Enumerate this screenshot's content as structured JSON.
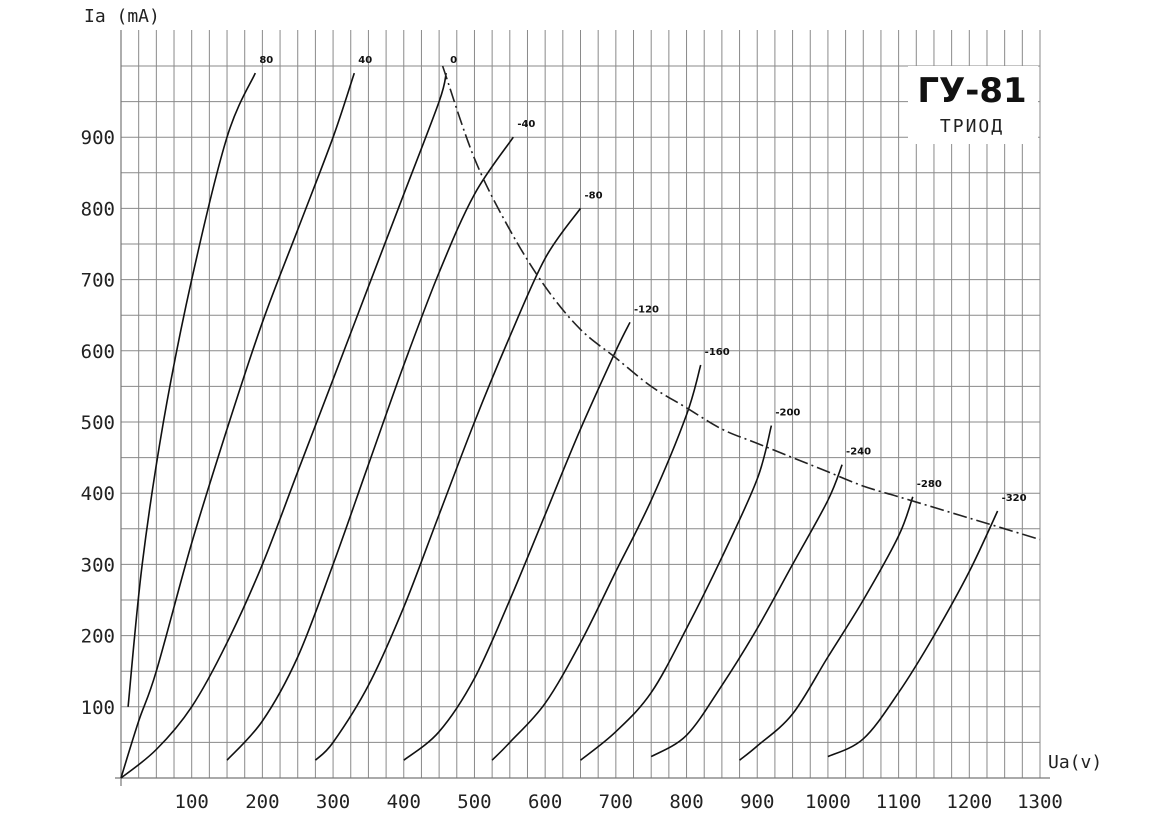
{
  "chart_data": {
    "type": "line",
    "title": "ГУ-81",
    "subtitle": "ТРИОД",
    "xlabel": "Ua(v)",
    "ylabel": "Ia (mA)",
    "xlim": [
      0,
      1300
    ],
    "ylim": [
      0,
      1000
    ],
    "grid": true,
    "x_ticks": [
      100,
      200,
      300,
      400,
      500,
      600,
      700,
      800,
      900,
      1000,
      1100,
      1200,
      1300
    ],
    "x_tick_labels": [
      "100",
      "200",
      "300",
      "400",
      "500",
      "600",
      "700",
      "800",
      "900",
      "1000",
      "1100",
      "1200",
      "1300"
    ],
    "y_ticks": [
      100,
      200,
      300,
      400,
      500,
      600,
      700,
      800,
      900
    ],
    "y_tick_labels": [
      "100",
      "200",
      "300",
      "400",
      "500",
      "600",
      "700",
      "800",
      "900"
    ],
    "series": [
      {
        "name": "80",
        "x": [
          10,
          30,
          60,
          100,
          150,
          190
        ],
        "y": [
          100,
          300,
          500,
          700,
          900,
          990
        ]
      },
      {
        "name": "40",
        "x": [
          0,
          25,
          50,
          100,
          150,
          200,
          250,
          300,
          330
        ],
        "y": [
          0,
          80,
          150,
          330,
          490,
          640,
          770,
          900,
          990
        ]
      },
      {
        "name": "0",
        "x": [
          0,
          50,
          100,
          150,
          200,
          250,
          300,
          350,
          400,
          450,
          460
        ],
        "y": [
          0,
          40,
          100,
          190,
          300,
          430,
          560,
          690,
          820,
          950,
          990
        ]
      },
      {
        "name": "-40",
        "x": [
          150,
          200,
          250,
          300,
          350,
          400,
          450,
          500,
          555
        ],
        "y": [
          25,
          80,
          170,
          300,
          440,
          580,
          710,
          820,
          900
        ]
      },
      {
        "name": "-80",
        "x": [
          275,
          300,
          350,
          400,
          450,
          500,
          550,
          600,
          650
        ],
        "y": [
          25,
          50,
          130,
          240,
          370,
          500,
          620,
          730,
          800
        ]
      },
      {
        "name": "-120",
        "x": [
          400,
          450,
          500,
          550,
          600,
          650,
          700,
          720
        ],
        "y": [
          25,
          65,
          140,
          250,
          370,
          490,
          600,
          640
        ]
      },
      {
        "name": "-160",
        "x": [
          525,
          550,
          600,
          650,
          700,
          750,
          800,
          820
        ],
        "y": [
          25,
          50,
          105,
          190,
          290,
          390,
          510,
          580
        ]
      },
      {
        "name": "-200",
        "x": [
          650,
          700,
          750,
          800,
          850,
          900,
          920
        ],
        "y": [
          25,
          65,
          120,
          210,
          310,
          420,
          495
        ]
      },
      {
        "name": "-240",
        "x": [
          750,
          800,
          850,
          900,
          950,
          1000,
          1020
        ],
        "y": [
          30,
          60,
          130,
          210,
          300,
          390,
          440
        ]
      },
      {
        "name": "-280",
        "x": [
          875,
          900,
          950,
          1000,
          1050,
          1100,
          1120
        ],
        "y": [
          25,
          45,
          90,
          170,
          250,
          340,
          395
        ]
      },
      {
        "name": "-320",
        "x": [
          1000,
          1050,
          1100,
          1150,
          1200,
          1240
        ],
        "y": [
          30,
          55,
          120,
          200,
          290,
          375
        ]
      }
    ],
    "limit_curve": {
      "style": "dash-dot",
      "x": [
        455,
        500,
        550,
        600,
        650,
        700,
        750,
        800,
        850,
        900,
        950,
        1000,
        1050,
        1100,
        1150,
        1200,
        1250,
        1300
      ],
      "y": [
        1000,
        870,
        770,
        690,
        630,
        590,
        550,
        520,
        490,
        470,
        450,
        430,
        410,
        395,
        380,
        365,
        350,
        335
      ]
    }
  }
}
